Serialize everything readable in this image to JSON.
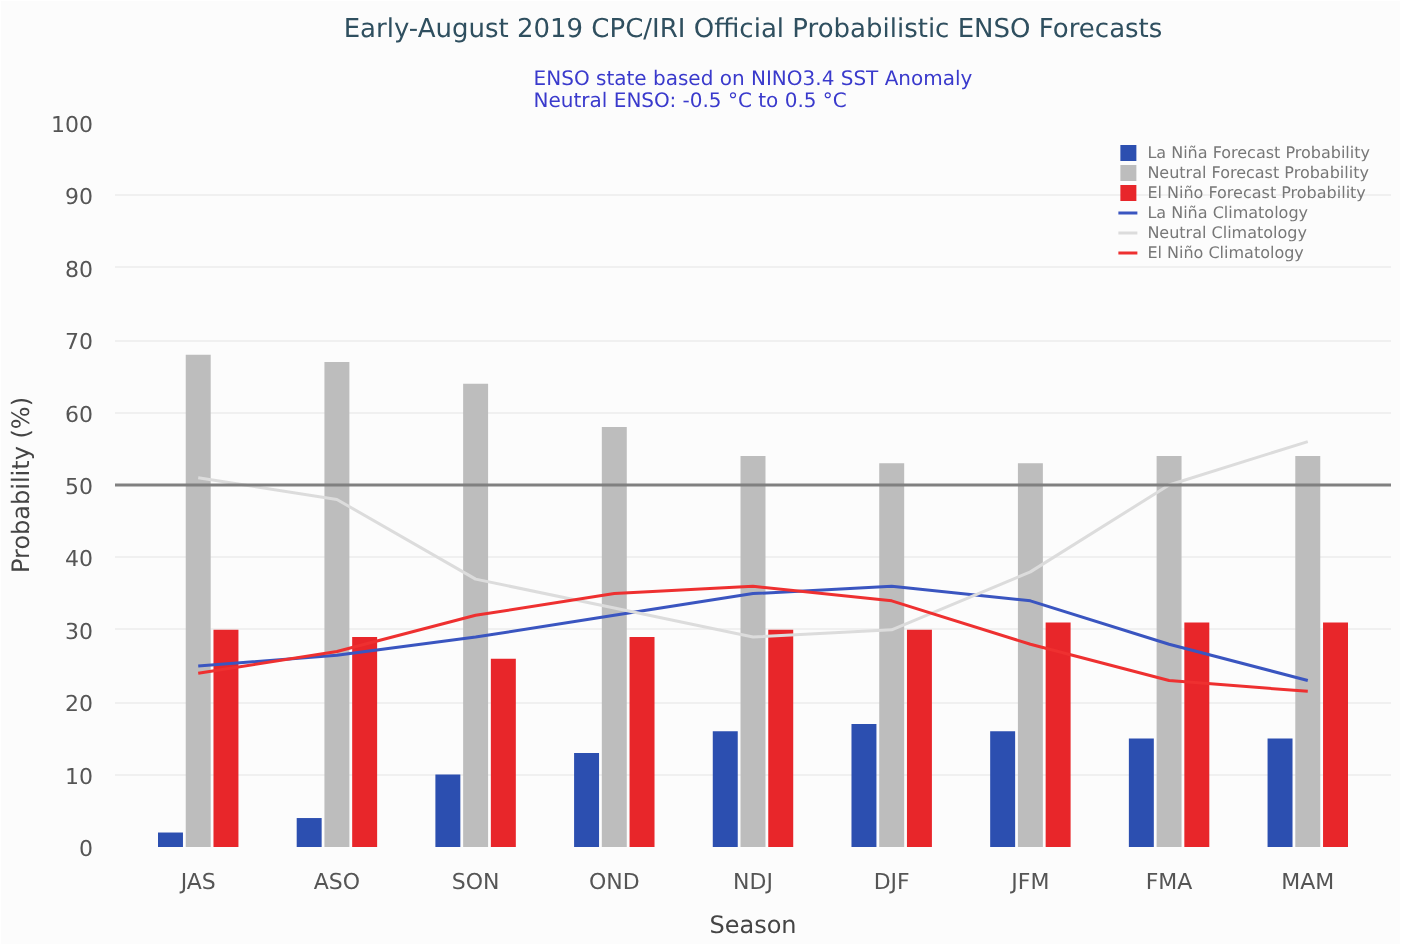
{
  "chart_data": {
    "type": "bar",
    "title": "Early-August 2019 CPC/IRI Official Probabilistic ENSO Forecasts",
    "subtitle": "ENSO state based on NINO3.4 SST Anomaly\nNeutral ENSO: -0.5 °C to 0.5 °C",
    "xlabel": "Season",
    "ylabel": "Probability (%)",
    "categories": [
      "JAS",
      "ASO",
      "SON",
      "OND",
      "NDJ",
      "DJF",
      "JFM",
      "FMA",
      "MAM"
    ],
    "series": [
      {
        "name": "La Niña Forecast Probability",
        "color": "#2c4fb0",
        "values": [
          2,
          4,
          10,
          13,
          16,
          17,
          16,
          15,
          15
        ]
      },
      {
        "name": "Neutral Forecast Probability",
        "color": "#bdbdbd",
        "values": [
          68,
          67,
          64,
          58,
          54,
          53,
          53,
          54,
          54
        ]
      },
      {
        "name": "El Niño Forecast Probability",
        "color": "#e8262a",
        "values": [
          30,
          29,
          26,
          29,
          30,
          30,
          31,
          31,
          31
        ]
      },
      {
        "name": "La Niña Climatology",
        "type": "line",
        "color": "#3a55c0",
        "values": [
          25,
          26.5,
          29,
          32,
          35,
          36,
          34,
          28,
          23
        ]
      },
      {
        "name": "Neutral Climatology",
        "type": "line",
        "color": "#dcdcdc",
        "values": [
          51,
          48,
          37,
          33,
          29,
          30,
          38,
          50,
          56
        ]
      },
      {
        "name": "El Niño Climatology",
        "type": "line",
        "color": "#ee3030",
        "values": [
          24,
          27,
          32,
          35,
          36,
          34,
          28,
          23,
          21.5
        ]
      }
    ],
    "ylim": [
      0,
      100
    ],
    "yticks": [
      0,
      10,
      20,
      30,
      40,
      50,
      60,
      70,
      80,
      90,
      100
    ],
    "grid": "y",
    "legend": "top right",
    "line_style": "solid",
    "marker": "none",
    "ref_lines": [
      {
        "axis": "y",
        "value": 50,
        "color": "#808080"
      }
    ]
  }
}
